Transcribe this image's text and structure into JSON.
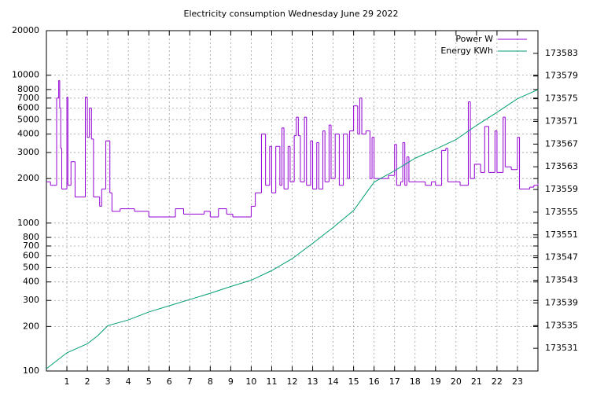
{
  "chart_data": {
    "type": "line",
    "title": "Electricity consumption Wednesday June 29 2022",
    "xlim": [
      0,
      24
    ],
    "xticks": [
      1,
      2,
      3,
      4,
      5,
      6,
      7,
      8,
      9,
      10,
      11,
      12,
      13,
      14,
      15,
      16,
      17,
      18,
      19,
      20,
      21,
      22,
      23
    ],
    "ylim": [
      100,
      20000
    ],
    "ylog": true,
    "yticks": [
      100,
      200,
      300,
      400,
      500,
      600,
      700,
      800,
      1000,
      2000,
      3000,
      4000,
      5000,
      6000,
      7000,
      8000,
      10000,
      20000
    ],
    "y2lim": [
      173527,
      173587
    ],
    "y2ticks": [
      173531,
      173535,
      173539,
      173543,
      173547,
      173551,
      173555,
      173559,
      173563,
      173567,
      173571,
      173575,
      173579,
      173583
    ],
    "grid": true,
    "legend": "top-right",
    "series": [
      {
        "name": "Power W",
        "color": "#9400d3",
        "style": "steps",
        "x": [
          0,
          0.2,
          0.5,
          0.6,
          0.65,
          0.7,
          0.75,
          1.0,
          1.05,
          1.2,
          1.4,
          1.9,
          2.0,
          2.1,
          2.2,
          2.3,
          2.6,
          2.7,
          2.9,
          3.1,
          3.2,
          3.6,
          4.3,
          5.0,
          5.5,
          6.3,
          6.7,
          7.7,
          8.0,
          8.4,
          8.8,
          9.1,
          10.0,
          10.2,
          10.5,
          10.7,
          10.9,
          11.0,
          11.2,
          11.4,
          11.5,
          11.6,
          11.8,
          11.9,
          12.1,
          12.2,
          12.3,
          12.4,
          12.6,
          12.7,
          12.9,
          13.0,
          13.2,
          13.3,
          13.5,
          13.6,
          13.8,
          13.9,
          14.1,
          14.3,
          14.5,
          14.7,
          14.8,
          15.0,
          15.2,
          15.3,
          15.4,
          15.6,
          15.8,
          15.9,
          16.0,
          16.3,
          16.7,
          17.0,
          17.1,
          17.3,
          17.4,
          17.5,
          17.6,
          17.7,
          18.5,
          18.8,
          19.0,
          19.3,
          19.5,
          19.6,
          20.2,
          20.6,
          20.7,
          20.9,
          21.2,
          21.4,
          21.6,
          21.9,
          22.0,
          22.3,
          22.4,
          22.7,
          23.0,
          23.1,
          23.6,
          23.8,
          24
        ],
        "values": [
          1900,
          1800,
          7000,
          9200,
          6000,
          3200,
          1700,
          7100,
          1800,
          2600,
          1500,
          7100,
          3800,
          6000,
          3700,
          1500,
          1300,
          1700,
          3600,
          1600,
          1200,
          1250,
          1200,
          1100,
          1100,
          1250,
          1150,
          1200,
          1100,
          1250,
          1150,
          1100,
          1300,
          1600,
          4000,
          1800,
          3300,
          1600,
          3300,
          1800,
          4400,
          1700,
          3300,
          1900,
          3900,
          5200,
          3900,
          1900,
          5200,
          1800,
          3600,
          1700,
          3500,
          1700,
          4200,
          1900,
          4600,
          2000,
          4000,
          1800,
          4000,
          2000,
          4200,
          6200,
          4000,
          7000,
          4000,
          4200,
          2000,
          3800,
          2000,
          2000,
          2100,
          3400,
          1800,
          1900,
          3500,
          1800,
          2800,
          1900,
          1800,
          1900,
          1800,
          3100,
          3200,
          1900,
          1800,
          6600,
          2000,
          2500,
          2200,
          4500,
          2200,
          4200,
          2200,
          5200,
          2400,
          2300,
          3800,
          1700,
          1750,
          1800,
          1850
        ]
      },
      {
        "name": "Energy KWh",
        "color": "#009e73",
        "axis": "y2",
        "x": [
          0,
          0.5,
          1,
          2,
          2.5,
          3,
          4,
          5,
          6,
          7,
          8,
          9,
          10,
          11,
          12,
          13,
          14,
          15,
          15.5,
          16,
          17,
          18,
          19,
          20,
          21,
          22,
          23,
          24
        ],
        "values": [
          173527.4,
          173528.8,
          173530.2,
          173531.8,
          173533.2,
          173535.0,
          173536.0,
          173537.4,
          173538.5,
          173539.6,
          173540.7,
          173541.9,
          173543.0,
          173544.7,
          173546.8,
          173549.5,
          173552.3,
          173555.3,
          173557.8,
          173560.3,
          173562.3,
          173564.5,
          173566.1,
          173567.8,
          173570.3,
          173572.6,
          173575.0,
          173576.6
        ]
      }
    ]
  }
}
